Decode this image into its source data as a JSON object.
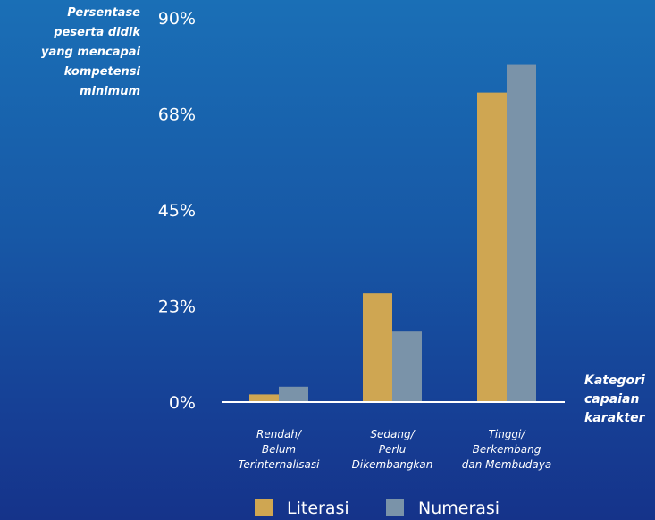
{
  "chart_data": {
    "type": "bar",
    "ylabel_lines": [
      "Persentase",
      "peserta didik",
      "yang mencapai",
      "kompetensi",
      "minimum"
    ],
    "xlabel_lines": [
      "Kategori",
      "capaian",
      "karakter"
    ],
    "y_ticks": [
      "0%",
      "23%",
      "45%",
      "68%",
      "90%"
    ],
    "ylim": [
      0,
      90
    ],
    "categories": [
      [
        "Rendah/",
        "Belum",
        "Terinternalisasi"
      ],
      [
        "Sedang/",
        "Perlu",
        "Dikembangkan"
      ],
      [
        "Tinggi/",
        "Berkembang",
        "dan Membudaya"
      ]
    ],
    "series": [
      {
        "name": "Literasi",
        "color": "#cfa652",
        "values": [
          1.8,
          25.5,
          72.5
        ]
      },
      {
        "name": "Numerasi",
        "color": "#7a93a9",
        "values": [
          3.6,
          16.5,
          79.0
        ]
      }
    ],
    "grid": false,
    "legend_position": "bottom-center"
  }
}
